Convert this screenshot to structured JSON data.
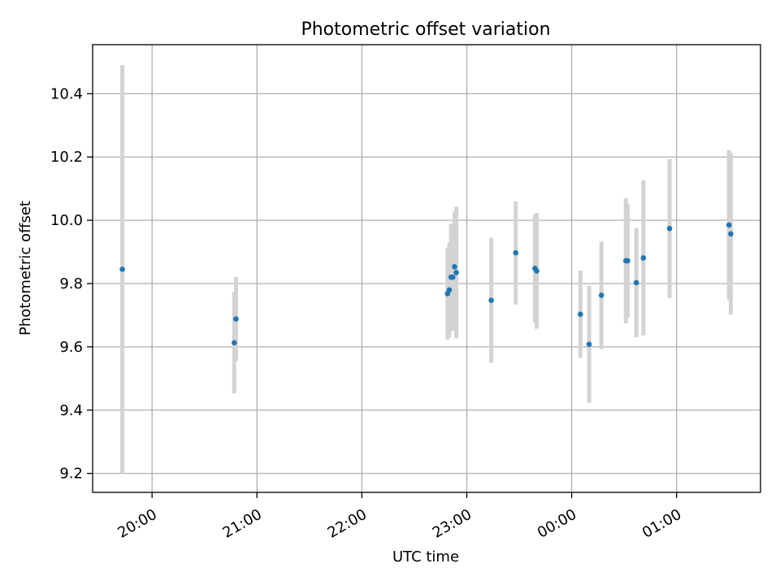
{
  "chart_data": {
    "type": "scatter",
    "title": "Photometric offset variation",
    "xlabel": "UTC time",
    "ylabel": "Photometric offset",
    "x_tick_labels": [
      "20:00",
      "21:00",
      "22:00",
      "23:00",
      "00:00",
      "01:00"
    ],
    "y_tick_labels": [
      "9.2",
      "9.4",
      "9.6",
      "9.8",
      "10.0",
      "10.2",
      "10.4"
    ],
    "x_ticks_minutes": [
      0,
      60,
      120,
      180,
      240,
      300
    ],
    "y_ticks": [
      9.2,
      9.4,
      9.6,
      9.8,
      10.0,
      10.2,
      10.4
    ],
    "xlim_minutes": [
      -34,
      348
    ],
    "ylim": [
      9.14,
      10.555
    ],
    "x_axis_origin": "20:00",
    "grid": true,
    "marker_color": "#1f77b4",
    "errorbar_color": "#d3d3d3",
    "points": [
      {
        "t": "19:43",
        "y": 9.845,
        "err": 0.645
      },
      {
        "t": "20:47",
        "y": 9.613,
        "err": 0.16
      },
      {
        "t": "20:48",
        "y": 9.688,
        "err": 0.133
      },
      {
        "t": "22:49",
        "y": 9.768,
        "err": 0.145
      },
      {
        "t": "22:50",
        "y": 9.78,
        "err": 0.15
      },
      {
        "t": "22:51",
        "y": 9.82,
        "err": 0.168
      },
      {
        "t": "22:52",
        "y": 9.82,
        "err": 0.17
      },
      {
        "t": "22:53",
        "y": 9.853,
        "err": 0.175
      },
      {
        "t": "22:54",
        "y": 9.835,
        "err": 0.208
      },
      {
        "t": "23:14",
        "y": 9.747,
        "err": 0.197
      },
      {
        "t": "23:28",
        "y": 9.897,
        "err": 0.163
      },
      {
        "t": "23:39",
        "y": 9.848,
        "err": 0.17
      },
      {
        "t": "23:40",
        "y": 9.84,
        "err": 0.183
      },
      {
        "t": "00:05",
        "y": 9.703,
        "err": 0.138
      },
      {
        "t": "00:10",
        "y": 9.608,
        "err": 0.185
      },
      {
        "t": "00:17",
        "y": 9.763,
        "err": 0.17
      },
      {
        "t": "00:31",
        "y": 9.872,
        "err": 0.198
      },
      {
        "t": "00:32",
        "y": 9.872,
        "err": 0.18
      },
      {
        "t": "00:37",
        "y": 9.803,
        "err": 0.173
      },
      {
        "t": "00:41",
        "y": 9.881,
        "err": 0.245
      },
      {
        "t": "00:56",
        "y": 9.974,
        "err": 0.22
      },
      {
        "t": "01:30",
        "y": 9.985,
        "err": 0.237
      },
      {
        "t": "01:31",
        "y": 9.957,
        "err": 0.255
      }
    ]
  }
}
